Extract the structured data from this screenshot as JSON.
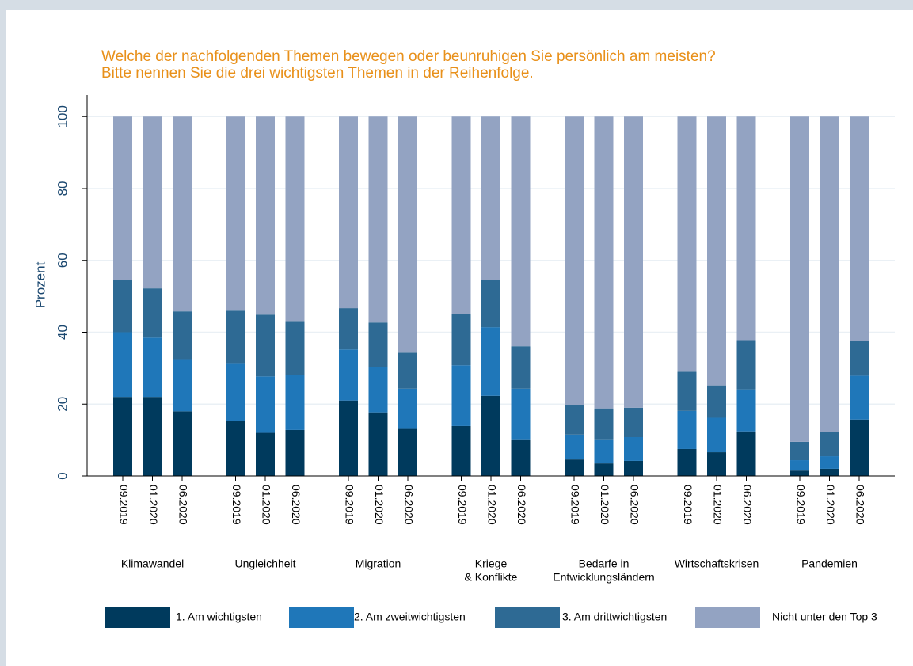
{
  "chart_data": {
    "type": "stacked-bar",
    "title": [
      "Welche der nachfolgenden Themen bewegen oder beunruhigen Sie persönlich am meisten?",
      "Bitte nennen Sie die drei wichtigsten Themen in der Reihenfolge."
    ],
    "y_label": "Prozent",
    "groups": [
      [
        "Klimawandel"
      ],
      [
        "Ungleichheit"
      ],
      [
        "Migration"
      ],
      [
        "Kriege",
        "& Konflikte"
      ],
      [
        "Bedarfe in",
        "Entwicklungsländern"
      ],
      [
        "Wirtschaftskrisen"
      ],
      [
        "Pandemien"
      ]
    ],
    "categories": [
      "09.2019",
      "01.2020",
      "06.2020",
      "09.2019",
      "01.2020",
      "06.2020",
      "09.2019",
      "01.2020",
      "06.2020",
      "09.2019",
      "01.2020",
      "06.2020",
      "09.2019",
      "01.2020",
      "06.2020",
      "09.2019",
      "01.2020",
      "06.2020",
      "09.2019",
      "01.2020",
      "06.2020"
    ],
    "series": [
      {
        "name": "1. Am wichtigsten",
        "color": "#003a5d",
        "values": [
          22,
          22,
          18,
          15.3,
          12,
          12.8,
          21,
          17.7,
          13.1,
          13.9,
          22.3,
          10.2,
          4.6,
          3.5,
          4.2,
          7.5,
          6.6,
          12.4,
          1.5,
          2,
          15.7
        ]
      },
      {
        "name": "2. Am zweitwichtigsten",
        "color": "#1f77b9",
        "values": [
          18,
          16.5,
          14.5,
          15.9,
          15.7,
          15.3,
          14.2,
          12.6,
          11.2,
          16.9,
          19.1,
          14.1,
          6.9,
          6.7,
          6.6,
          10.6,
          9.6,
          11.7,
          2.9,
          3.5,
          12.2
        ]
      },
      {
        "name": "3. Am drittwichtigsten",
        "color": "#2e6a94",
        "values": [
          14.5,
          13.7,
          13.3,
          14.8,
          17.2,
          15,
          11.5,
          12.4,
          10,
          14.3,
          13.2,
          11.8,
          8.2,
          8.6,
          8.2,
          10.9,
          9,
          13.7,
          5.1,
          6.7,
          9.7
        ]
      },
      {
        "name": "Nicht unter den Top 3",
        "color": "#93a3c2",
        "values": [
          45.5,
          47.8,
          54.2,
          54,
          55.1,
          56.9,
          53.3,
          57.3,
          65.7,
          54.9,
          45.4,
          63.9,
          80.3,
          81.2,
          81,
          71,
          74.8,
          62.2,
          90.5,
          87.8,
          62.4
        ]
      }
    ],
    "ylim": [
      0,
      106
    ],
    "yticks": [
      0,
      20,
      40,
      60,
      80,
      100
    ],
    "grid": true
  }
}
